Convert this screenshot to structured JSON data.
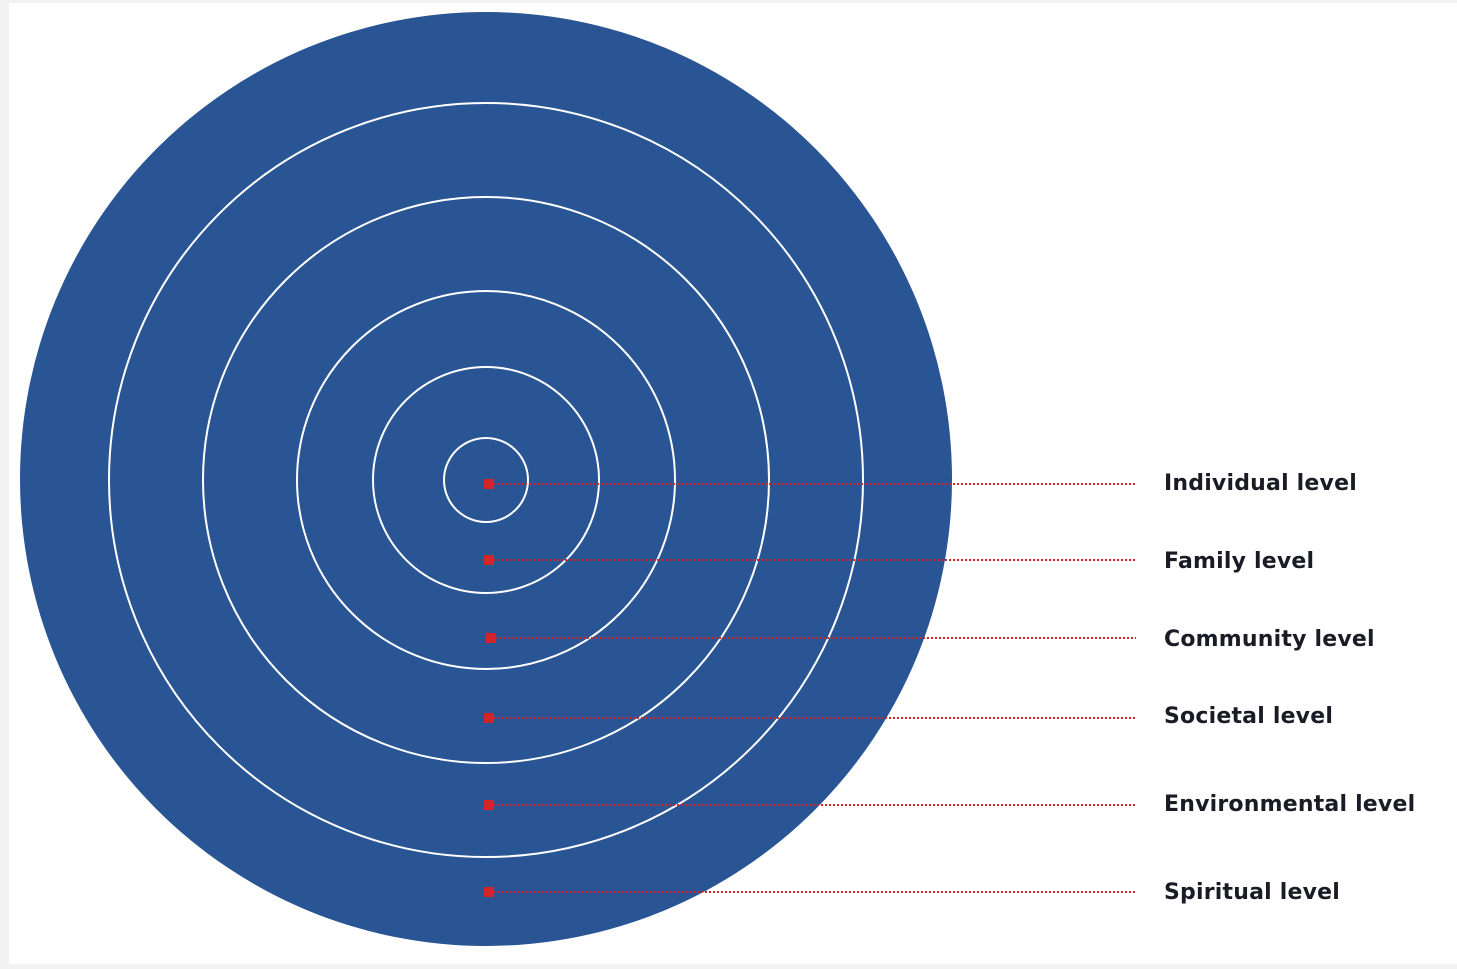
{
  "diagram": {
    "colors": {
      "circle_fill": "#2a5594",
      "ring_stroke": "#ffffff",
      "marker": "#d3232b",
      "leader_line": "#d3232b",
      "label_text": "#1b1b26"
    },
    "levels": [
      {
        "label": "Individual level"
      },
      {
        "label": "Family level"
      },
      {
        "label": "Community level"
      },
      {
        "label": "Societal level"
      },
      {
        "label": "Environmental level"
      },
      {
        "label": "Spiritual level"
      }
    ]
  }
}
